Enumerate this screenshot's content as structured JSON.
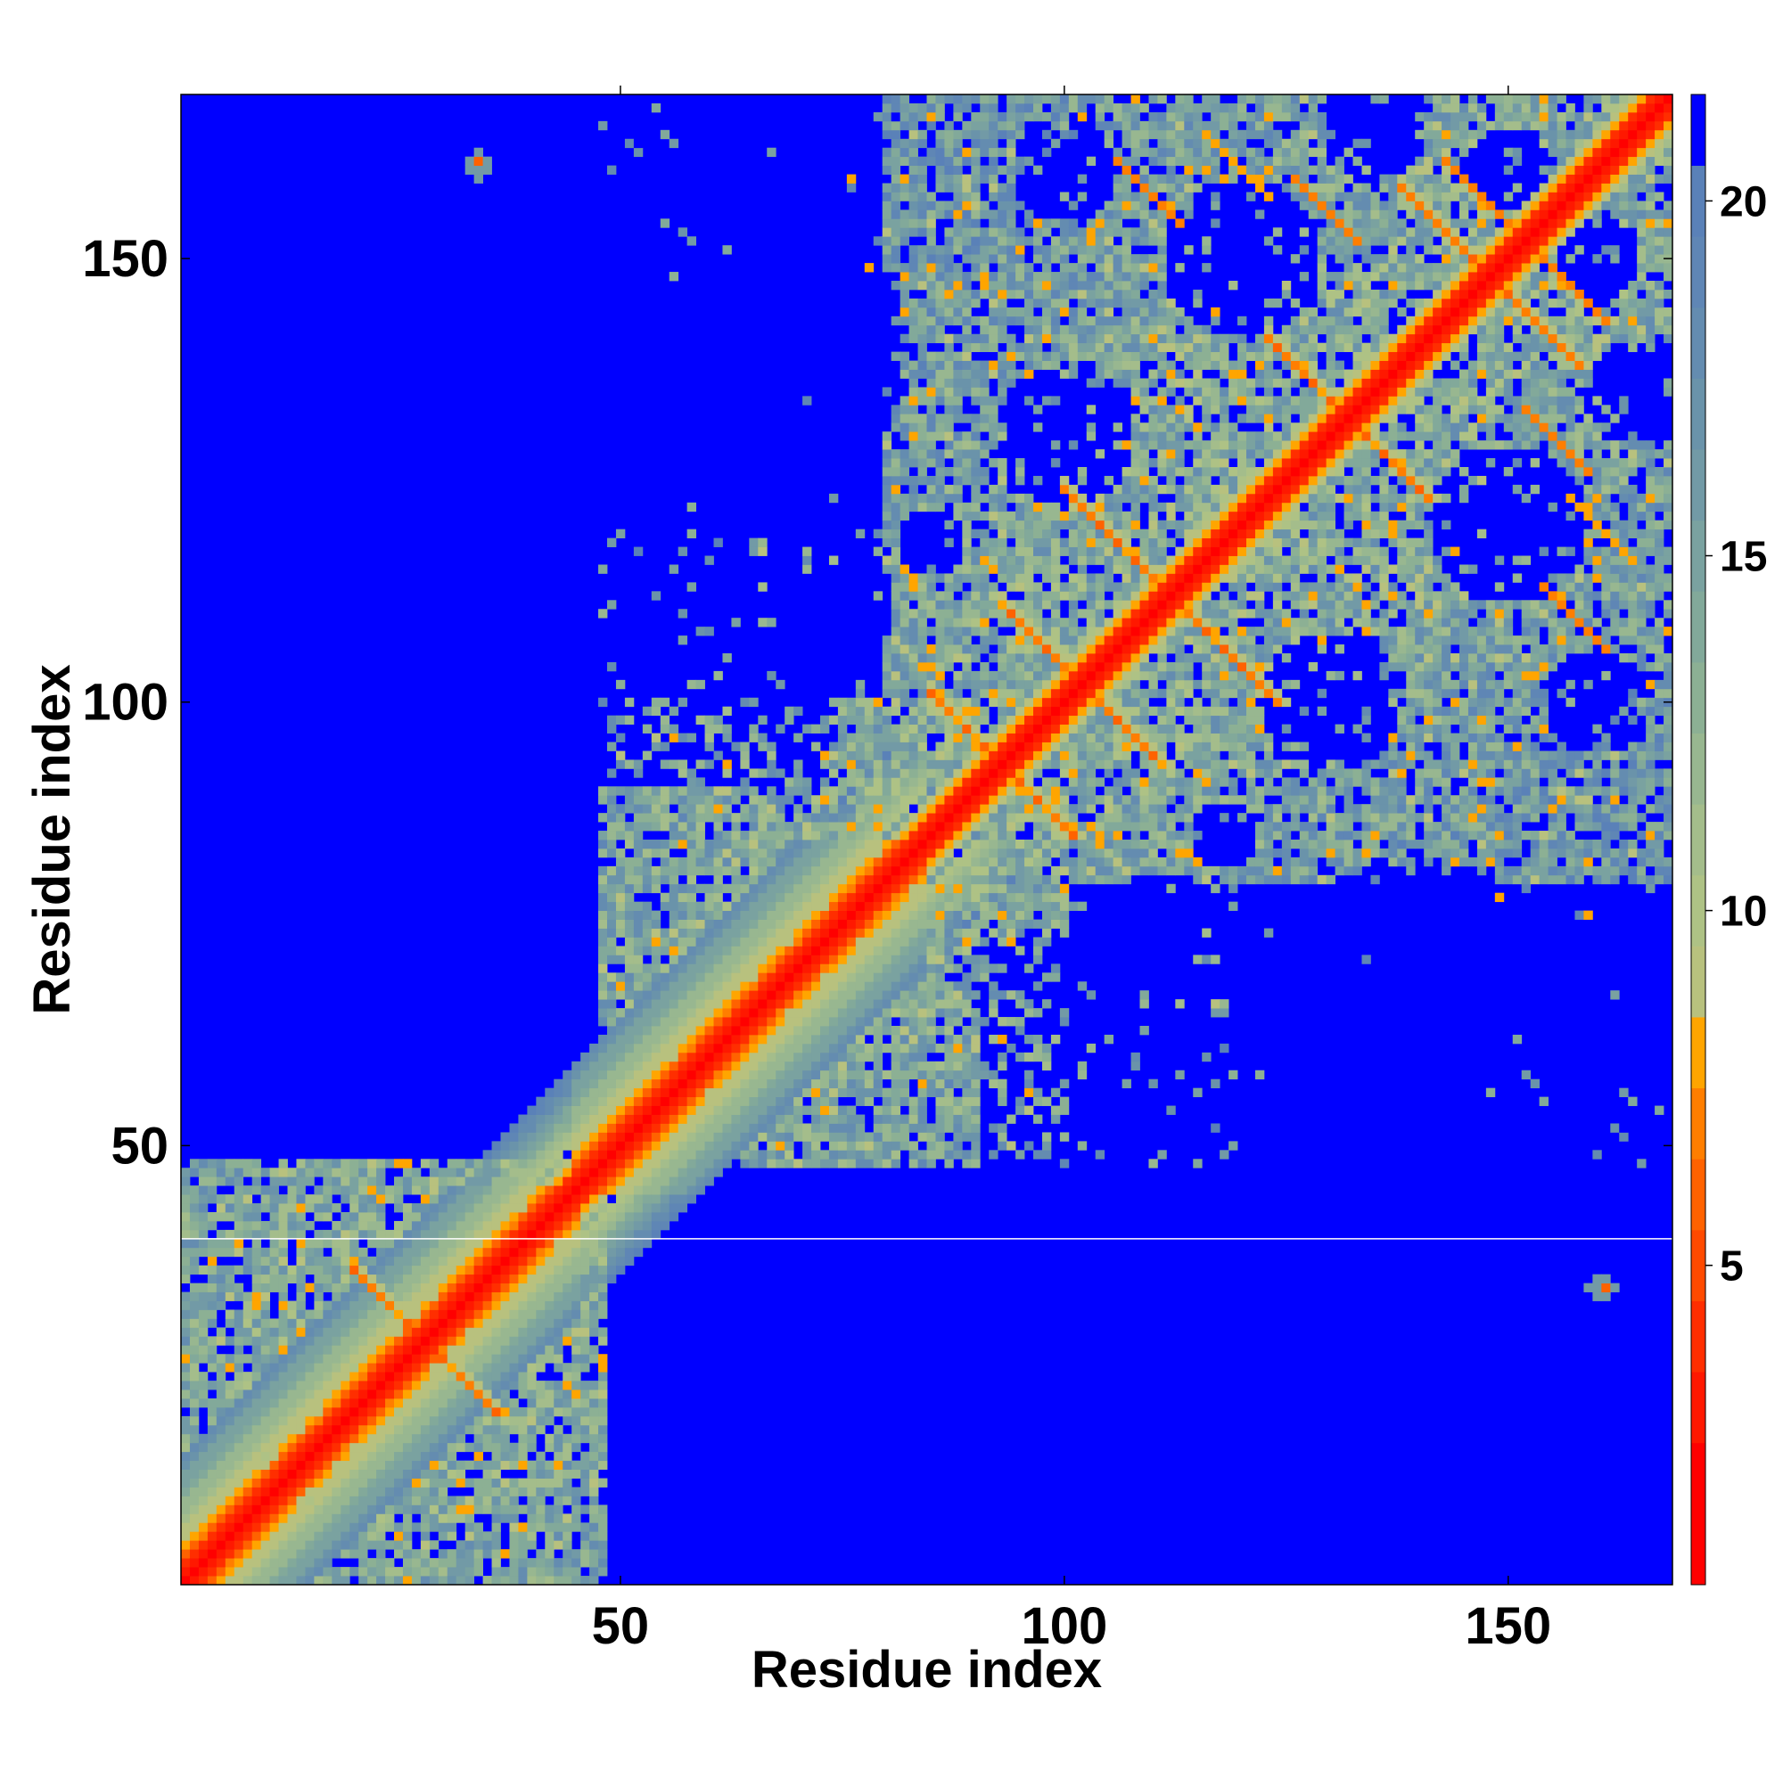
{
  "chart_data": {
    "type": "heatmap",
    "title": "",
    "xlabel": "Residue index",
    "ylabel": "Residue index",
    "xlim": [
      1,
      168
    ],
    "ylim": [
      1,
      168
    ],
    "n_residues": 168,
    "x_ticks": [
      50,
      100,
      150
    ],
    "y_ticks": [
      50,
      100,
      150
    ],
    "colorbar": {
      "range": [
        0.5,
        21.5
      ],
      "ticks": [
        5,
        10,
        15,
        20
      ],
      "levels": [
        {
          "max": 1,
          "color": "#ff0000"
        },
        {
          "max": 2,
          "color": "#ff0000"
        },
        {
          "max": 3,
          "color": "#ff1800"
        },
        {
          "max": 4,
          "color": "#ff2e00"
        },
        {
          "max": 5,
          "color": "#ff4a00"
        },
        {
          "max": 6,
          "color": "#ff6200"
        },
        {
          "max": 7,
          "color": "#ff7e00"
        },
        {
          "max": 8,
          "color": "#ffa500"
        },
        {
          "max": 9,
          "color": "#b8c17e"
        },
        {
          "max": 10,
          "color": "#aec285"
        },
        {
          "max": 11,
          "color": "#a4bd8b"
        },
        {
          "max": 12,
          "color": "#98b790"
        },
        {
          "max": 13,
          "color": "#8cb094"
        },
        {
          "max": 14,
          "color": "#82a99a"
        },
        {
          "max": 15,
          "color": "#7aa2a0"
        },
        {
          "max": 16,
          "color": "#729aa6"
        },
        {
          "max": 17,
          "color": "#6a93aa"
        },
        {
          "max": 18,
          "color": "#648cb0"
        },
        {
          "max": 19,
          "color": "#5f86b5"
        },
        {
          "max": 20,
          "color": "#5a81b8"
        },
        {
          "max": 21,
          "color": "#0000ff"
        }
      ]
    },
    "background_color": "#0000ff",
    "value_description_source": "pairwise distance matrix (Å) between residues",
    "structure": {
      "domains": [
        [
          1,
          48
        ],
        [
          48,
          168
        ]
      ],
      "helices": [
        [
          1,
          45
        ],
        [
          45,
          84
        ]
      ],
      "contact_arms": [
        {
          "center": 28,
          "length": 8
        },
        {
          "center": 93,
          "length": 8
        },
        {
          "center": 102,
          "length": 9
        },
        {
          "center": 112,
          "length": 12
        },
        {
          "center": 132,
          "length": 9
        },
        {
          "center": 148,
          "length": 10
        }
      ],
      "off_diagonal_contacts": [
        {
          "i": 110,
          "j": 157,
          "value": 6
        },
        {
          "i": 130,
          "j": 155,
          "value": 6
        },
        {
          "i": 147,
          "j": 157,
          "value": 6
        },
        {
          "i": 120,
          "j": 160,
          "value": 7
        }
      ],
      "isolated_points": [
        {
          "x": 34,
          "y": 160,
          "value": 6
        },
        {
          "x": 161,
          "y": 34,
          "value": 6
        }
      ],
      "separator_row_y": 40
    }
  }
}
